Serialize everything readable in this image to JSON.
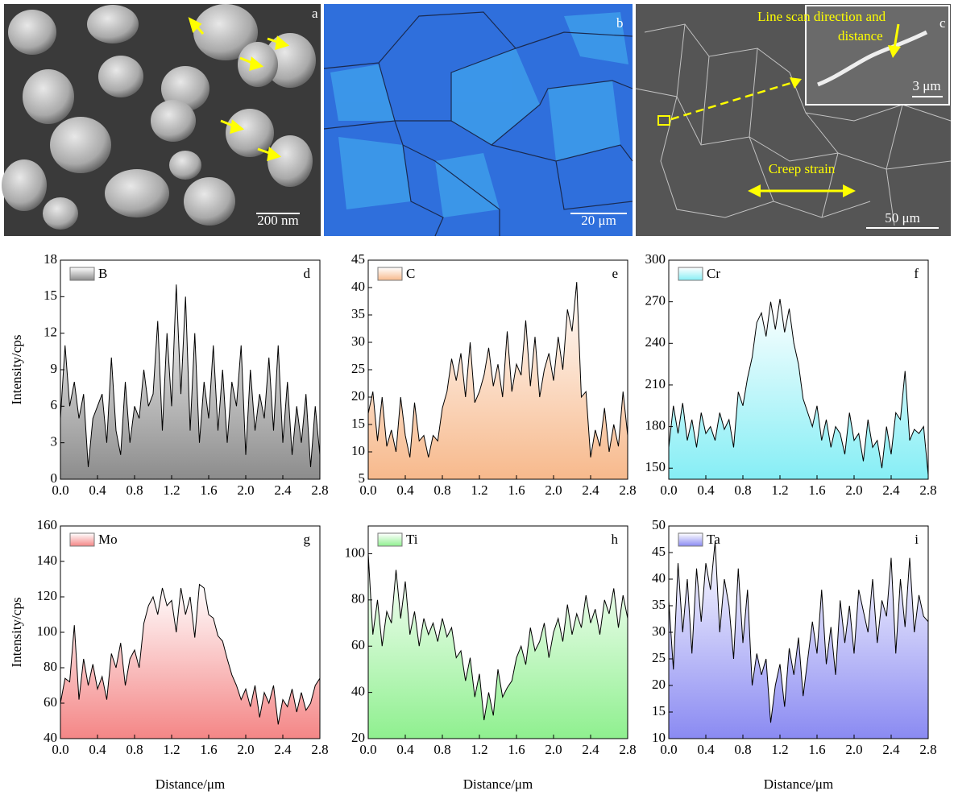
{
  "images": [
    {
      "label": "a",
      "scale": "200 nm"
    },
    {
      "label": "b",
      "scale": "20 μm"
    },
    {
      "label": "c",
      "scale": "50 μm",
      "inset_scale": "3 μm",
      "line_scan_label": [
        "Line scan direction and",
        "distance"
      ],
      "strain_label": "Creep strain"
    }
  ],
  "chart_data": [
    {
      "type": "area",
      "panel_label": "d",
      "ylabel": "Intensity/cps",
      "x": [
        0,
        0.05,
        0.1,
        0.15,
        0.2,
        0.25,
        0.3,
        0.35,
        0.4,
        0.45,
        0.5,
        0.55,
        0.6,
        0.65,
        0.7,
        0.75,
        0.8,
        0.85,
        0.9,
        0.95,
        1,
        1.05,
        1.1,
        1.15,
        1.2,
        1.25,
        1.3,
        1.35,
        1.4,
        1.45,
        1.5,
        1.55,
        1.6,
        1.65,
        1.7,
        1.75,
        1.8,
        1.85,
        1.9,
        1.95,
        2,
        2.05,
        2.1,
        2.15,
        2.2,
        2.25,
        2.3,
        2.35,
        2.4,
        2.45,
        2.5,
        2.55,
        2.6,
        2.65,
        2.7,
        2.75,
        2.8
      ],
      "series": [
        {
          "name": "B",
          "color": "#8c8c8c",
          "values": [
            5,
            11,
            6,
            8,
            5,
            7,
            1,
            5,
            6,
            7,
            3,
            10,
            4,
            2,
            8,
            3,
            6,
            5,
            9,
            6,
            7,
            13,
            4,
            12,
            6,
            16,
            7,
            15,
            4,
            12,
            3,
            8,
            5,
            11,
            4,
            9,
            3,
            8,
            6,
            11,
            2,
            9,
            4,
            7,
            5,
            10,
            4,
            11,
            3,
            8,
            2,
            6,
            3,
            7,
            1,
            6,
            2
          ]
        }
      ],
      "xlim": [
        0,
        2.8
      ],
      "xticks": [
        {
          "value": 0,
          "label": "0.0"
        },
        0.4,
        0.8,
        1.2,
        1.6,
        {
          "value": 2,
          "label": "2.0"
        },
        2.4,
        2.8
      ],
      "ylim": [
        0,
        18
      ],
      "yticks": [
        0,
        3,
        6,
        9,
        12,
        15,
        18
      ]
    },
    {
      "type": "area",
      "panel_label": "e",
      "x": [
        0,
        0.05,
        0.1,
        0.15,
        0.2,
        0.25,
        0.3,
        0.35,
        0.4,
        0.45,
        0.5,
        0.55,
        0.6,
        0.65,
        0.7,
        0.75,
        0.8,
        0.85,
        0.9,
        0.95,
        1,
        1.05,
        1.1,
        1.15,
        1.2,
        1.25,
        1.3,
        1.35,
        1.4,
        1.45,
        1.5,
        1.55,
        1.6,
        1.65,
        1.7,
        1.75,
        1.8,
        1.85,
        1.9,
        1.95,
        2,
        2.05,
        2.1,
        2.15,
        2.2,
        2.25,
        2.3,
        2.35,
        2.4,
        2.45,
        2.5,
        2.55,
        2.6,
        2.65,
        2.7,
        2.75,
        2.8
      ],
      "series": [
        {
          "name": "C",
          "color": "#f7b98c",
          "values": [
            17,
            21,
            12,
            20,
            11,
            14,
            10,
            20,
            13,
            9,
            19,
            12,
            13,
            9,
            13,
            12,
            18,
            21,
            27,
            23,
            28,
            20,
            30,
            19,
            21,
            24,
            29,
            22,
            26,
            20,
            32,
            21,
            26,
            24,
            34,
            22,
            31,
            20,
            25,
            28,
            23,
            31,
            25,
            36,
            32,
            41,
            20,
            21,
            9,
            14,
            11,
            18,
            10,
            15,
            11,
            21,
            13
          ]
        }
      ],
      "xlim": [
        0,
        2.8
      ],
      "xticks": [
        {
          "value": 0,
          "label": "0.0"
        },
        0.4,
        0.8,
        1.2,
        1.6,
        {
          "value": 2,
          "label": "2.0"
        },
        2.4,
        2.8
      ],
      "ylim": [
        5,
        45
      ],
      "yticks": [
        5,
        10,
        15,
        20,
        25,
        30,
        35,
        40,
        45
      ]
    },
    {
      "type": "area",
      "panel_label": "f",
      "x": [
        0,
        0.05,
        0.1,
        0.15,
        0.2,
        0.25,
        0.3,
        0.35,
        0.4,
        0.45,
        0.5,
        0.55,
        0.6,
        0.65,
        0.7,
        0.75,
        0.8,
        0.85,
        0.9,
        0.95,
        1,
        1.05,
        1.1,
        1.15,
        1.2,
        1.25,
        1.3,
        1.35,
        1.4,
        1.45,
        1.5,
        1.55,
        1.6,
        1.65,
        1.7,
        1.75,
        1.8,
        1.85,
        1.9,
        1.95,
        2,
        2.05,
        2.1,
        2.15,
        2.2,
        2.25,
        2.3,
        2.35,
        2.4,
        2.45,
        2.5,
        2.55,
        2.6,
        2.65,
        2.7,
        2.75,
        2.8
      ],
      "series": [
        {
          "name": "Cr",
          "color": "#86eef5",
          "values": [
            165,
            195,
            175,
            197,
            170,
            185,
            165,
            190,
            175,
            180,
            170,
            190,
            178,
            185,
            165,
            205,
            195,
            215,
            230,
            255,
            262,
            245,
            270,
            250,
            272,
            248,
            265,
            240,
            225,
            200,
            190,
            180,
            195,
            170,
            185,
            165,
            180,
            175,
            160,
            190,
            170,
            175,
            155,
            185,
            165,
            170,
            150,
            180,
            160,
            190,
            185,
            220,
            170,
            178,
            175,
            180,
            145
          ]
        }
      ],
      "xlim": [
        0,
        2.8
      ],
      "xticks": [
        {
          "value": 0,
          "label": "0.0"
        },
        0.4,
        0.8,
        1.2,
        1.6,
        {
          "value": 2,
          "label": "2.0"
        },
        2.4,
        2.8
      ],
      "ylim": [
        142,
        300
      ],
      "yticks": [
        150,
        180,
        210,
        240,
        270,
        300
      ]
    },
    {
      "type": "area",
      "panel_label": "g",
      "ylabel": "Intensity/cps",
      "xlabel": "Distance/μm",
      "x": [
        0,
        0.05,
        0.1,
        0.15,
        0.2,
        0.25,
        0.3,
        0.35,
        0.4,
        0.45,
        0.5,
        0.55,
        0.6,
        0.65,
        0.7,
        0.75,
        0.8,
        0.85,
        0.9,
        0.95,
        1,
        1.05,
        1.1,
        1.15,
        1.2,
        1.25,
        1.3,
        1.35,
        1.4,
        1.45,
        1.5,
        1.55,
        1.6,
        1.65,
        1.7,
        1.75,
        1.8,
        1.85,
        1.9,
        1.95,
        2,
        2.05,
        2.1,
        2.15,
        2.2,
        2.25,
        2.3,
        2.35,
        2.4,
        2.45,
        2.5,
        2.55,
        2.6,
        2.65,
        2.7,
        2.75,
        2.8
      ],
      "series": [
        {
          "name": "Mo",
          "color": "#f48686",
          "values": [
            60,
            74,
            72,
            104,
            62,
            85,
            70,
            82,
            68,
            75,
            62,
            88,
            80,
            94,
            70,
            85,
            90,
            80,
            105,
            115,
            120,
            110,
            125,
            115,
            118,
            100,
            125,
            110,
            120,
            97,
            127,
            125,
            110,
            108,
            98,
            95,
            85,
            76,
            70,
            62,
            68,
            58,
            70,
            52,
            66,
            60,
            70,
            48,
            62,
            58,
            68,
            55,
            66,
            56,
            60,
            70,
            74
          ]
        }
      ],
      "xlim": [
        0,
        2.8
      ],
      "xticks": [
        {
          "value": 0,
          "label": "0.0"
        },
        0.4,
        0.8,
        1.2,
        1.6,
        {
          "value": 2,
          "label": "2.0"
        },
        2.4,
        2.8
      ],
      "ylim": [
        40,
        160
      ],
      "yticks": [
        40,
        60,
        80,
        100,
        120,
        140,
        160
      ]
    },
    {
      "type": "area",
      "panel_label": "h",
      "xlabel": "Distance/μm",
      "x": [
        0,
        0.05,
        0.1,
        0.15,
        0.2,
        0.25,
        0.3,
        0.35,
        0.4,
        0.45,
        0.5,
        0.55,
        0.6,
        0.65,
        0.7,
        0.75,
        0.8,
        0.85,
        0.9,
        0.95,
        1,
        1.05,
        1.1,
        1.15,
        1.2,
        1.25,
        1.3,
        1.35,
        1.4,
        1.45,
        1.5,
        1.55,
        1.6,
        1.65,
        1.7,
        1.75,
        1.8,
        1.85,
        1.9,
        1.95,
        2,
        2.05,
        2.1,
        2.15,
        2.2,
        2.25,
        2.3,
        2.35,
        2.4,
        2.45,
        2.5,
        2.55,
        2.6,
        2.65,
        2.7,
        2.75,
        2.8
      ],
      "series": [
        {
          "name": "Ti",
          "color": "#8ff08f",
          "values": [
            100,
            65,
            80,
            60,
            75,
            70,
            93,
            72,
            88,
            65,
            75,
            60,
            72,
            65,
            70,
            62,
            72,
            64,
            68,
            55,
            58,
            45,
            55,
            38,
            48,
            28,
            40,
            30,
            50,
            38,
            42,
            45,
            55,
            60,
            52,
            68,
            58,
            62,
            70,
            55,
            66,
            72,
            62,
            78,
            65,
            74,
            68,
            82,
            70,
            76,
            65,
            80,
            74,
            85,
            68,
            82,
            72
          ]
        }
      ],
      "xlim": [
        0,
        2.8
      ],
      "xticks": [
        {
          "value": 0,
          "label": "0.0"
        },
        0.4,
        0.8,
        1.2,
        1.6,
        {
          "value": 2,
          "label": "2.0"
        },
        2.4,
        2.8
      ],
      "ylim": [
        20,
        112
      ],
      "yticks": [
        20,
        40,
        60,
        80,
        100
      ]
    },
    {
      "type": "area",
      "panel_label": "i",
      "xlabel": "Distance/μm",
      "x": [
        0,
        0.05,
        0.1,
        0.15,
        0.2,
        0.25,
        0.3,
        0.35,
        0.4,
        0.45,
        0.5,
        0.55,
        0.6,
        0.65,
        0.7,
        0.75,
        0.8,
        0.85,
        0.9,
        0.95,
        1,
        1.05,
        1.1,
        1.15,
        1.2,
        1.25,
        1.3,
        1.35,
        1.4,
        1.45,
        1.5,
        1.55,
        1.6,
        1.65,
        1.7,
        1.75,
        1.8,
        1.85,
        1.9,
        1.95,
        2,
        2.05,
        2.1,
        2.15,
        2.2,
        2.25,
        2.3,
        2.35,
        2.4,
        2.45,
        2.5,
        2.55,
        2.6,
        2.65,
        2.7,
        2.75,
        2.8
      ],
      "series": [
        {
          "name": "Ta",
          "color": "#8a8af2",
          "values": [
            36,
            23,
            43,
            30,
            40,
            26,
            42,
            32,
            43,
            38,
            47,
            30,
            40,
            35,
            25,
            42,
            28,
            38,
            20,
            26,
            22,
            25,
            13,
            20,
            24,
            16,
            27,
            22,
            29,
            18,
            25,
            32,
            26,
            38,
            24,
            31,
            22,
            36,
            28,
            35,
            26,
            38,
            34,
            30,
            40,
            28,
            36,
            33,
            44,
            26,
            40,
            31,
            44,
            30,
            37,
            33,
            32
          ]
        }
      ],
      "xlim": [
        0,
        2.8
      ],
      "xticks": [
        {
          "value": 0,
          "label": "0.0"
        },
        0.4,
        0.8,
        1.2,
        1.6,
        {
          "value": 2,
          "label": "2.0"
        },
        2.4,
        2.8
      ],
      "ylim": [
        10,
        50
      ],
      "yticks": [
        10,
        15,
        20,
        25,
        30,
        35,
        40,
        45,
        50
      ]
    }
  ]
}
